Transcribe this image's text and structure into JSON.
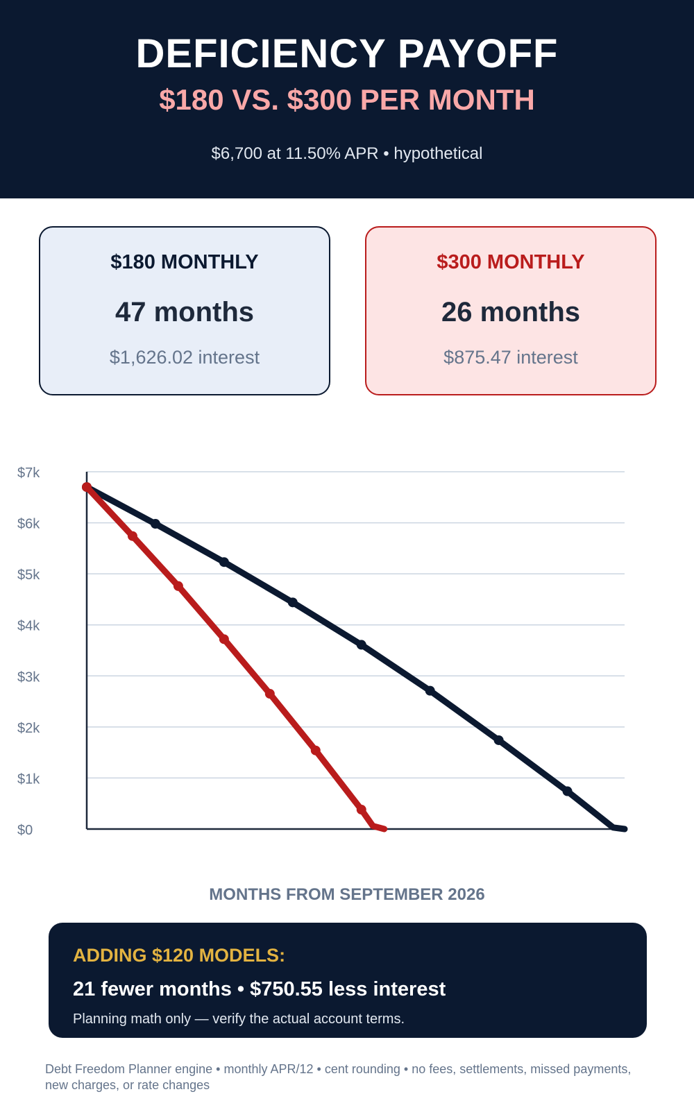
{
  "header": {
    "title": "DEFICIENCY PAYOFF",
    "subtitle": "$180 VS. $300 PER MONTH",
    "meta": "$6,700 at 11.50% APR  •  hypothetical"
  },
  "cards": [
    {
      "label": "$180 MONTHLY",
      "months": "47 months",
      "interest": "$1,626.02 interest"
    },
    {
      "label": "$300 MONTHLY",
      "months": "26 months",
      "interest": "$875.47 interest"
    }
  ],
  "colors": {
    "navy": "#0b1930",
    "red": "#b91c1c",
    "gold": "#e3b341",
    "grid": "#cbd5e1",
    "muted": "#64748b"
  },
  "chart_data": {
    "type": "line",
    "title": "",
    "xlabel": "MONTHS FROM SEPTEMBER 2026",
    "ylabel": "",
    "xlim": [
      0,
      47
    ],
    "ylim": [
      0,
      7000
    ],
    "grid": true,
    "x_ticks": [
      0,
      6,
      12,
      18,
      24,
      30,
      36,
      42
    ],
    "y_ticks": [
      0,
      1000,
      2000,
      3000,
      4000,
      5000,
      6000,
      7000
    ],
    "y_tick_labels": [
      "$0",
      "$1k",
      "$2k",
      "$3k",
      "$4k",
      "$5k",
      "$6k",
      "$7k"
    ],
    "series": [
      {
        "name": "$180 MONTHLY",
        "color": "#0b1930",
        "x": [
          0,
          6,
          12,
          18,
          24,
          30,
          36,
          42,
          46,
          47
        ],
        "values": [
          6700,
          5980,
          5230,
          4440,
          3610,
          2710,
          1740,
          740,
          30,
          0
        ],
        "marker_x": [
          0,
          6,
          12,
          18,
          24,
          30,
          36,
          42
        ]
      },
      {
        "name": "$300 MONTHLY",
        "color": "#b91c1c",
        "x": [
          0,
          4,
          8,
          12,
          16,
          20,
          24,
          25,
          26
        ],
        "values": [
          6700,
          5740,
          4760,
          3720,
          2650,
          1540,
          380,
          60,
          0
        ],
        "marker_x": [
          0,
          4,
          8,
          12,
          16,
          20,
          24
        ]
      }
    ]
  },
  "callout": {
    "heading": "ADDING $120 MODELS:",
    "main": "21 fewer months  •  $750.55 less interest",
    "note": "Planning math only — verify the actual account terms."
  },
  "footnote": "Debt Freedom Planner engine • monthly APR/12 • cent rounding • no fees, settlements, missed payments, new charges, or rate changes"
}
